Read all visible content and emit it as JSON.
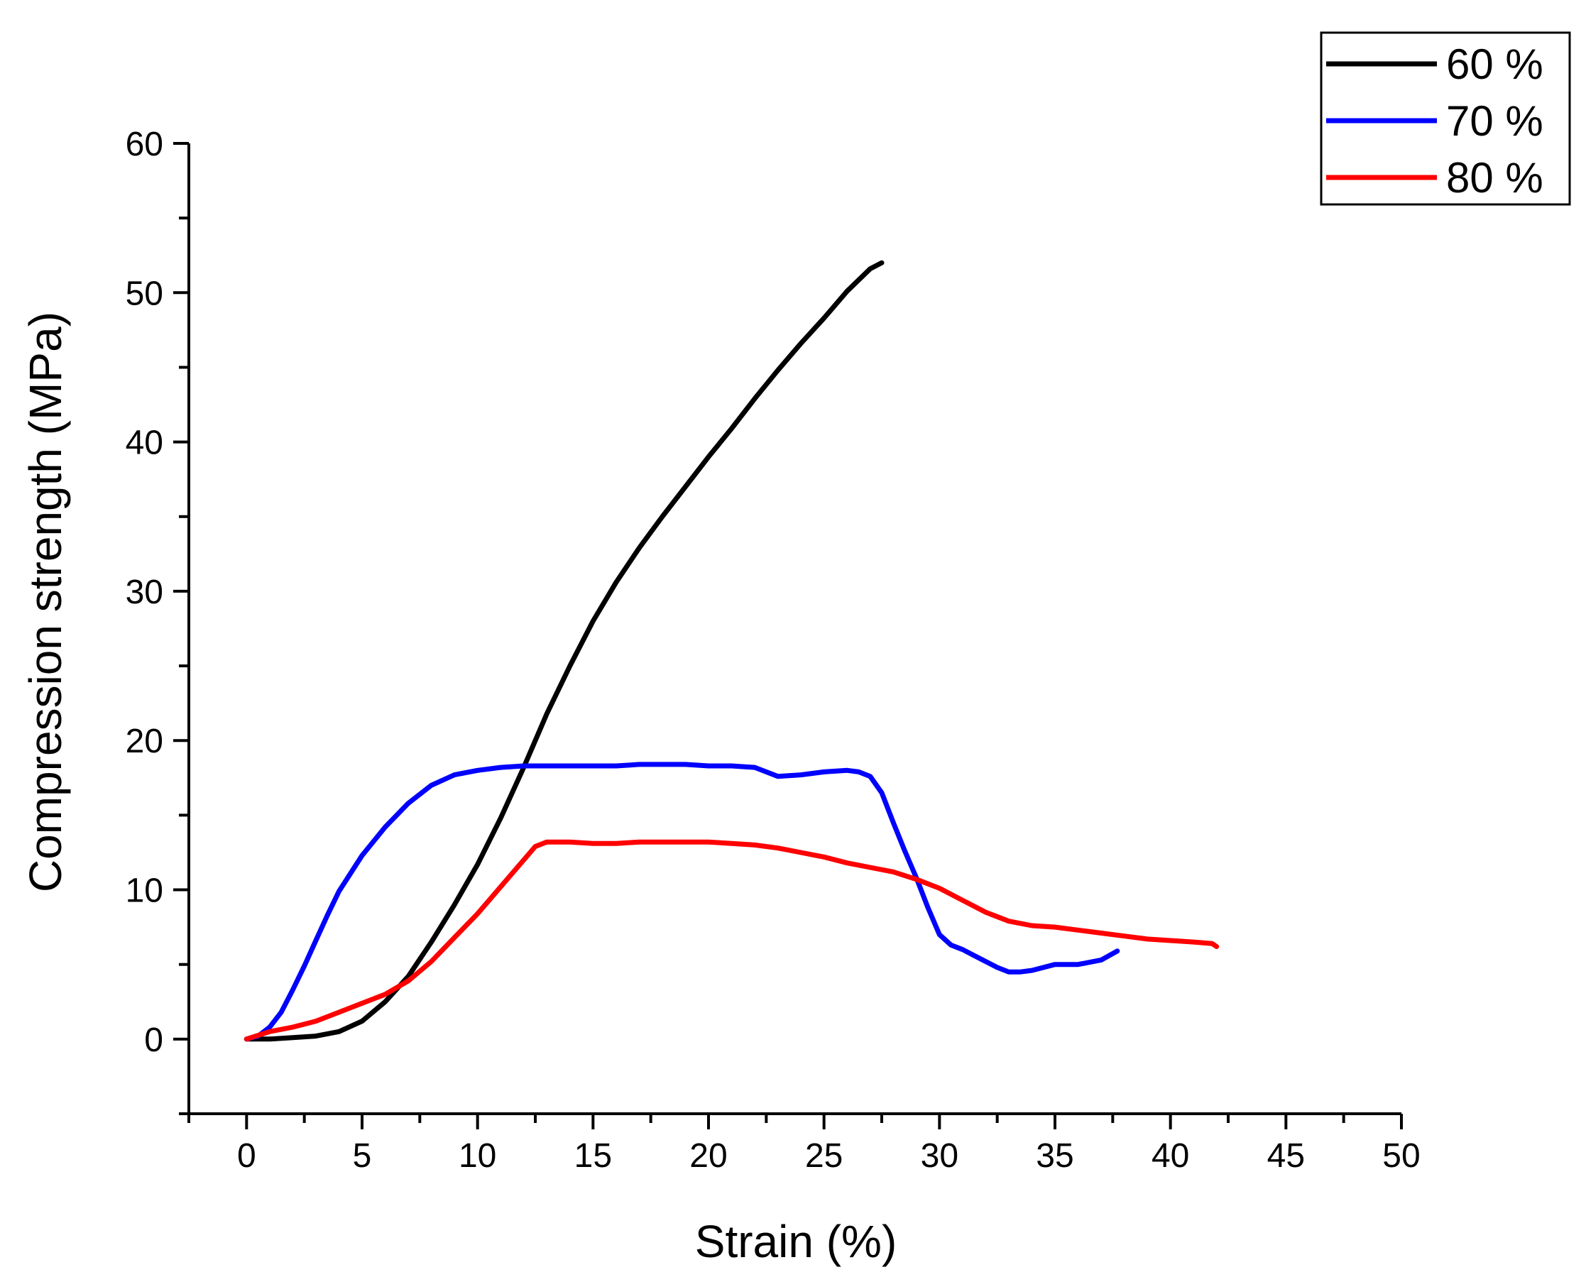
{
  "chart_data": {
    "type": "line",
    "title": "",
    "xlabel": "Strain (%)",
    "ylabel": "Compression strength (MPa)",
    "xlim": [
      -2.5,
      50
    ],
    "ylim": [
      -5,
      60
    ],
    "x_ticks": [
      0,
      5,
      10,
      15,
      20,
      25,
      30,
      35,
      40,
      45,
      50
    ],
    "y_ticks": [
      0,
      10,
      20,
      30,
      40,
      50,
      60
    ],
    "x_tick_labels": [
      "0",
      "5",
      "10",
      "15",
      "20",
      "25",
      "30",
      "35",
      "40",
      "45",
      "50"
    ],
    "y_tick_labels": [
      "0",
      "10",
      "20",
      "30",
      "40",
      "50",
      "60"
    ],
    "grid": false,
    "legend_position": "top-right",
    "series": [
      {
        "name": "60 %",
        "color": "#000000",
        "x": [
          0,
          1,
          2,
          3,
          4,
          5,
          6,
          7,
          8,
          9,
          10,
          11,
          12,
          13,
          14,
          15,
          16,
          17,
          18,
          19,
          20,
          21,
          22,
          23,
          24,
          25,
          26,
          27,
          27.5
        ],
        "y": [
          0,
          0,
          0.1,
          0.2,
          0.5,
          1.2,
          2.5,
          4.2,
          6.5,
          9.0,
          11.7,
          14.8,
          18.2,
          21.8,
          25.0,
          28.0,
          30.6,
          32.9,
          35.0,
          37.0,
          39.0,
          40.9,
          42.9,
          44.8,
          46.6,
          48.3,
          50.1,
          51.6,
          52.0
        ]
      },
      {
        "name": "70 %",
        "color": "#0000ff",
        "x": [
          0,
          0.5,
          1,
          1.5,
          2,
          2.5,
          3,
          3.5,
          4,
          5,
          6,
          7,
          8,
          9,
          10,
          11,
          12,
          13,
          15,
          16,
          17,
          18,
          19,
          20,
          21,
          22,
          22.5,
          23,
          24,
          25,
          26,
          26.5,
          27,
          27.5,
          28,
          28.5,
          29,
          29.5,
          30,
          30.5,
          31,
          31.5,
          32,
          32.5,
          33,
          33.5,
          34,
          35,
          36,
          37,
          37.7
        ],
        "y": [
          0,
          0.2,
          0.8,
          1.8,
          3.3,
          4.9,
          6.6,
          8.3,
          9.9,
          12.3,
          14.2,
          15.8,
          17.0,
          17.7,
          18.0,
          18.2,
          18.3,
          18.3,
          18.3,
          18.3,
          18.4,
          18.4,
          18.4,
          18.3,
          18.3,
          18.2,
          17.9,
          17.6,
          17.7,
          17.9,
          18.0,
          17.9,
          17.6,
          16.5,
          14.5,
          12.6,
          10.8,
          8.8,
          7.0,
          6.3,
          6.0,
          5.6,
          5.2,
          4.8,
          4.5,
          4.5,
          4.6,
          5.0,
          5.0,
          5.3,
          5.9
        ]
      },
      {
        "name": "80 %",
        "color": "#ff0000",
        "x": [
          0,
          1,
          2,
          3,
          4,
          5,
          6,
          7,
          8,
          9,
          10,
          11,
          12,
          12.5,
          13,
          14,
          15,
          16,
          17,
          18,
          19,
          20,
          21,
          22,
          23,
          24,
          25,
          26,
          27,
          28,
          29,
          30,
          31,
          32,
          33,
          34,
          35,
          36,
          37,
          38,
          39,
          40,
          41,
          41.8,
          42
        ],
        "y": [
          0,
          0.5,
          0.8,
          1.2,
          1.8,
          2.4,
          3.0,
          3.9,
          5.2,
          6.8,
          8.4,
          10.2,
          12.0,
          12.9,
          13.2,
          13.2,
          13.1,
          13.1,
          13.2,
          13.2,
          13.2,
          13.2,
          13.1,
          13.0,
          12.8,
          12.5,
          12.2,
          11.8,
          11.5,
          11.2,
          10.7,
          10.1,
          9.3,
          8.5,
          7.9,
          7.6,
          7.5,
          7.3,
          7.1,
          6.9,
          6.7,
          6.6,
          6.5,
          6.4,
          6.2
        ]
      }
    ]
  }
}
